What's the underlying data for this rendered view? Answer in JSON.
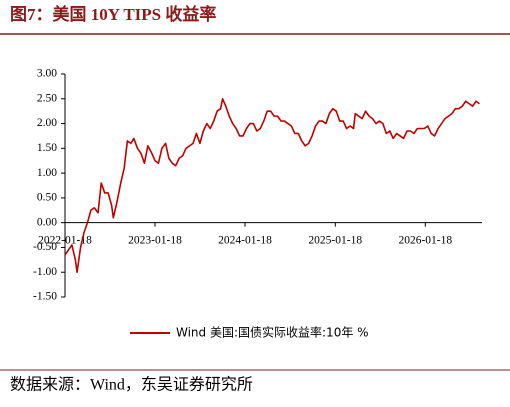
{
  "chart_data": {
    "type": "line",
    "title": "图7：美国 10Y TIPS 收益率",
    "source": "数据来源：Wind，东吴证券研究所",
    "x": [
      "2022-01-18",
      "2022-02-01",
      "2022-02-15",
      "2022-03-01",
      "2022-03-08",
      "2022-03-22",
      "2022-04-05",
      "2022-04-19",
      "2022-05-03",
      "2022-05-17",
      "2022-06-01",
      "2022-06-14",
      "2022-06-28",
      "2022-07-12",
      "2022-07-26",
      "2022-08-02",
      "2022-08-16",
      "2022-09-01",
      "2022-09-15",
      "2022-09-28",
      "2022-10-12",
      "2022-10-24",
      "2022-11-08",
      "2022-11-22",
      "2022-12-06",
      "2022-12-20",
      "2023-01-05",
      "2023-01-18",
      "2023-02-01",
      "2023-02-15",
      "2023-03-02",
      "2023-03-15",
      "2023-03-29",
      "2023-04-12",
      "2023-04-26",
      "2023-05-10",
      "2023-05-24",
      "2023-06-07",
      "2023-06-21",
      "2023-07-05",
      "2023-07-19",
      "2023-08-02",
      "2023-08-16",
      "2023-08-30",
      "2023-09-13",
      "2023-09-27",
      "2023-10-11",
      "2023-10-19",
      "2023-11-01",
      "2023-11-15",
      "2023-11-29",
      "2023-12-13",
      "2023-12-27",
      "2024-01-10",
      "2024-01-24",
      "2024-02-07",
      "2024-02-21",
      "2024-03-06",
      "2024-03-20",
      "2024-04-03",
      "2024-04-17",
      "2024-05-01",
      "2024-05-15",
      "2024-05-29",
      "2024-06-12",
      "2024-06-26",
      "2024-07-10",
      "2024-07-24",
      "2024-08-07",
      "2024-08-21",
      "2024-09-04",
      "2024-09-18",
      "2024-10-02",
      "2024-10-16",
      "2024-10-30",
      "2024-11-13",
      "2024-11-27",
      "2024-12-11",
      "2024-12-25",
      "2025-01-08",
      "2025-01-22",
      "2025-02-05",
      "2025-02-19",
      "2025-03-05",
      "2025-03-19",
      "2025-04-02",
      "2025-04-09",
      "2025-04-23",
      "2025-05-07",
      "2025-05-21",
      "2025-06-04",
      "2025-06-18",
      "2025-07-02",
      "2025-07-16",
      "2025-07-30",
      "2025-08-13",
      "2025-08-27",
      "2025-09-10",
      "2025-09-24",
      "2025-10-08",
      "2025-10-22",
      "2025-11-05",
      "2025-11-19",
      "2025-12-03",
      "2025-12-17",
      "2025-12-31",
      "2026-01-14",
      "2026-01-28",
      "2026-02-11",
      "2026-02-25",
      "2026-03-11",
      "2026-03-25",
      "2026-04-08",
      "2026-04-22",
      "2026-05-06",
      "2026-05-20",
      "2026-06-03",
      "2026-06-17",
      "2026-07-01",
      "2026-07-15",
      "2026-07-29",
      "2026-08-12",
      "2026-08-26"
    ],
    "series": [
      {
        "name": "Wind 美国:国债实际收益率:10年 %",
        "color": "#c00000",
        "values": [
          -0.65,
          -0.55,
          -0.45,
          -0.75,
          -1.0,
          -0.5,
          -0.2,
          0.0,
          0.25,
          0.3,
          0.2,
          0.8,
          0.6,
          0.6,
          0.35,
          0.1,
          0.4,
          0.8,
          1.1,
          1.65,
          1.6,
          1.7,
          1.5,
          1.4,
          1.2,
          1.55,
          1.4,
          1.25,
          1.2,
          1.5,
          1.6,
          1.3,
          1.2,
          1.15,
          1.3,
          1.35,
          1.5,
          1.55,
          1.6,
          1.8,
          1.6,
          1.85,
          2.0,
          1.9,
          2.05,
          2.25,
          2.3,
          2.5,
          2.35,
          2.15,
          2.0,
          1.9,
          1.75,
          1.75,
          1.9,
          2.0,
          2.0,
          1.85,
          1.9,
          2.05,
          2.25,
          2.25,
          2.15,
          2.15,
          2.05,
          2.05,
          2.0,
          1.95,
          1.8,
          1.8,
          1.65,
          1.55,
          1.6,
          1.75,
          1.95,
          2.05,
          2.05,
          2.0,
          2.2,
          2.3,
          2.25,
          2.05,
          2.05,
          1.9,
          1.95,
          1.9,
          2.2,
          2.15,
          2.1,
          2.25,
          2.15,
          2.1,
          2.0,
          2.05,
          2.0,
          1.8,
          1.85,
          1.7,
          1.8,
          1.75,
          1.7,
          1.85,
          1.85,
          1.8,
          1.9,
          1.9,
          1.9,
          1.95,
          1.8,
          1.75,
          1.9,
          2.0,
          2.1,
          2.15,
          2.2,
          2.3,
          2.3,
          2.35,
          2.45,
          2.4,
          2.35,
          2.45,
          2.4
        ]
      }
    ],
    "xlim": [
      "2022-01-18",
      "2026-09-05"
    ],
    "xticks": [
      "2022-01-18",
      "2023-01-18",
      "2024-01-18",
      "2025-01-18",
      "2026-01-18"
    ],
    "ylim": [
      -1.5,
      3
    ],
    "yticks": [
      {
        "value": 3,
        "label": "3.00"
      },
      {
        "value": 2.5,
        "label": "2.50"
      },
      {
        "value": 2,
        "label": "2.00"
      },
      {
        "value": 1.5,
        "label": "1.50"
      },
      {
        "value": 1,
        "label": "1.00"
      },
      {
        "value": 0.5,
        "label": "0.50"
      },
      {
        "value": 0,
        "label": "0.00"
      },
      {
        "value": -0.5,
        "label": "-0.50"
      },
      {
        "value": -1,
        "label": "-1.00"
      },
      {
        "value": -1.5,
        "label": "-1.50"
      }
    ],
    "legend": "bottom"
  }
}
